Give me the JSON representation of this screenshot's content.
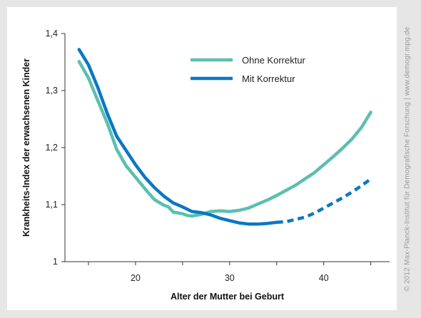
{
  "chart_data": {
    "type": "line",
    "title": "",
    "xlabel": "Alter der Mutter bei Geburt",
    "ylabel": "Krankheits-Index der erwachsenen Kinder",
    "xlim": [
      12.5,
      47
    ],
    "ylim": [
      1.0,
      1.4
    ],
    "xticks": [
      20,
      30,
      40
    ],
    "xtick_labels": [
      "20",
      "30",
      "40"
    ],
    "xticks_minor": [
      15,
      25,
      35,
      45
    ],
    "yticks": [
      1.0,
      1.1,
      1.2,
      1.3,
      1.4
    ],
    "ytick_labels": [
      "1",
      "1,1",
      "1,2",
      "1,3",
      "1,4"
    ],
    "grid": false,
    "legend_position": "top-center",
    "series": [
      {
        "name": "Ohne Korrektur",
        "color": "#5bbfb0",
        "style": "solid",
        "points": [
          [
            14,
            1.351
          ],
          [
            15,
            1.322
          ],
          [
            16,
            1.282
          ],
          [
            17,
            1.243
          ],
          [
            18,
            1.197
          ],
          [
            19,
            1.168
          ],
          [
            20,
            1.148
          ],
          [
            21,
            1.128
          ],
          [
            22,
            1.109
          ],
          [
            23,
            1.099
          ],
          [
            23.5,
            1.096
          ],
          [
            24,
            1.087
          ],
          [
            25,
            1.084
          ],
          [
            25.5,
            1.081
          ],
          [
            26,
            1.08
          ],
          [
            27,
            1.083
          ],
          [
            28,
            1.088
          ],
          [
            29,
            1.089
          ],
          [
            30,
            1.088
          ],
          [
            31,
            1.09
          ],
          [
            32,
            1.094
          ],
          [
            33,
            1.101
          ],
          [
            34,
            1.108
          ],
          [
            35,
            1.116
          ],
          [
            36,
            1.125
          ],
          [
            37,
            1.134
          ],
          [
            38,
            1.145
          ],
          [
            39,
            1.156
          ],
          [
            40,
            1.17
          ],
          [
            41,
            1.184
          ],
          [
            42,
            1.199
          ],
          [
            43,
            1.215
          ],
          [
            44,
            1.235
          ],
          [
            45,
            1.262
          ]
        ]
      },
      {
        "name": "Mit Korrektur",
        "color": "#0a78c2",
        "style": "solid-then-dashed",
        "dashed_from_x": 35,
        "points": [
          [
            14,
            1.372
          ],
          [
            15,
            1.345
          ],
          [
            16,
            1.305
          ],
          [
            17,
            1.26
          ],
          [
            18,
            1.22
          ],
          [
            19,
            1.195
          ],
          [
            20,
            1.17
          ],
          [
            21,
            1.148
          ],
          [
            22,
            1.13
          ],
          [
            23,
            1.115
          ],
          [
            24,
            1.103
          ],
          [
            25,
            1.096
          ],
          [
            26,
            1.088
          ],
          [
            27,
            1.086
          ],
          [
            28,
            1.082
          ],
          [
            29,
            1.076
          ],
          [
            30,
            1.072
          ],
          [
            31,
            1.068
          ],
          [
            32,
            1.066
          ],
          [
            33,
            1.066
          ],
          [
            34,
            1.067
          ],
          [
            35,
            1.069
          ],
          [
            36,
            1.07
          ],
          [
            37,
            1.074
          ],
          [
            38,
            1.078
          ],
          [
            39,
            1.085
          ],
          [
            40,
            1.094
          ],
          [
            41,
            1.103
          ],
          [
            42,
            1.112
          ],
          [
            43,
            1.122
          ],
          [
            44,
            1.133
          ],
          [
            45,
            1.145
          ]
        ]
      }
    ]
  },
  "credit": "© 2012 Max-Planck-Institut für Demografische Forschung | www.demogr.mpg.de"
}
